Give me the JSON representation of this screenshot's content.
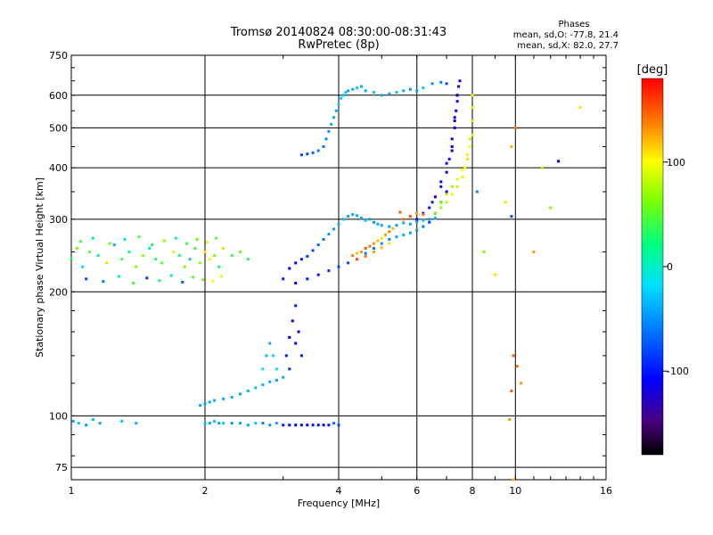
{
  "header": {
    "title_line1": "Tromsø 20140824 08:30:00-08:31:43",
    "title_line2": "RwPretec (8p)"
  },
  "stats": {
    "heading": "Phases",
    "line1": "mean, sd,O: -77.8, 21.4",
    "line2": "mean, sd,X:  82.0, 27.7"
  },
  "colorbar": {
    "unit_label": "[deg]",
    "ticks": [
      {
        "value": 100,
        "label": "100"
      },
      {
        "value": 0,
        "label": "0"
      },
      {
        "value": -100,
        "label": "-100"
      }
    ],
    "range": [
      -180,
      180
    ]
  },
  "chart_data": {
    "type": "scatter",
    "xlabel": "Frequency [MHz]",
    "ylabel": "Stationary phase Virtual Height [km]",
    "xscale": "log",
    "yscale": "log",
    "xlim": [
      1,
      16
    ],
    "ylim": [
      70,
      750
    ],
    "xticks": [
      {
        "value": 1,
        "label": "1"
      },
      {
        "value": 2,
        "label": "2"
      },
      {
        "value": 4,
        "label": "4"
      },
      {
        "value": 6,
        "label": "6"
      },
      {
        "value": 8,
        "label": "8"
      },
      {
        "value": 10,
        "label": "10"
      },
      {
        "value": 16,
        "label": "16"
      }
    ],
    "yticks": [
      {
        "value": 75,
        "label": "75"
      },
      {
        "value": 100,
        "label": "100"
      },
      {
        "value": 200,
        "label": "200"
      },
      {
        "value": 300,
        "label": "300"
      },
      {
        "value": 400,
        "label": "400"
      },
      {
        "value": 500,
        "label": "500"
      },
      {
        "value": 600,
        "label": "600"
      },
      {
        "value": 750,
        "label": "750"
      }
    ],
    "grid": true,
    "color_encodes": "phase [deg]",
    "series": [
      {
        "x": [
          1.0,
          1.03,
          1.06,
          1.1,
          1.15,
          1.2,
          1.25,
          1.3,
          1.35,
          1.4,
          1.45,
          1.5,
          1.55,
          1.6,
          1.7,
          1.75,
          1.8,
          1.85,
          1.9,
          1.95,
          2.0,
          2.05,
          2.1,
          2.15,
          2.2,
          1.05,
          1.12,
          1.22,
          1.32,
          1.42,
          1.52,
          1.62,
          1.72,
          1.82,
          1.92,
          2.02,
          2.12,
          1.08,
          1.18,
          1.28,
          1.38,
          1.48,
          1.58,
          1.68,
          1.78,
          1.88,
          1.98,
          2.08,
          2.18,
          2.3,
          2.4,
          2.5
        ],
        "y": [
          240,
          255,
          230,
          250,
          245,
          235,
          260,
          240,
          250,
          230,
          245,
          255,
          240,
          235,
          250,
          245,
          230,
          240,
          255,
          235,
          250,
          240,
          245,
          230,
          255,
          265,
          270,
          262,
          268,
          272,
          260,
          266,
          270,
          262,
          268,
          264,
          270,
          215,
          212,
          218,
          210,
          216,
          213,
          219,
          211,
          217,
          214,
          212,
          218,
          245,
          250,
          240
        ],
        "phase": [
          30,
          60,
          -20,
          50,
          10,
          80,
          -40,
          40,
          20,
          60,
          70,
          -10,
          30,
          50,
          90,
          20,
          60,
          -30,
          40,
          70,
          110,
          90,
          60,
          30,
          80,
          40,
          20,
          60,
          -20,
          50,
          30,
          70,
          10,
          40,
          60,
          90,
          50,
          -80,
          -60,
          10,
          40,
          -90,
          30,
          20,
          -70,
          50,
          60,
          100,
          90,
          40,
          60,
          30
        ]
      },
      {
        "x": [
          1.01,
          1.04,
          1.08,
          1.12,
          1.16,
          1.3,
          1.4,
          2.0,
          2.05,
          2.1,
          2.15,
          2.2,
          2.3,
          2.4,
          2.5,
          2.6,
          2.7,
          2.8,
          2.9,
          3.0,
          3.1,
          3.2,
          3.3,
          3.4,
          3.5,
          3.6,
          3.7,
          3.8,
          3.9,
          4.0
        ],
        "y": [
          97,
          96,
          95,
          98,
          96,
          97,
          96,
          96,
          96,
          97,
          96,
          96,
          96,
          96,
          95,
          96,
          96,
          95,
          96,
          95,
          95,
          95,
          95,
          95,
          95,
          95,
          95,
          95,
          96,
          95
        ],
        "phase": [
          -40,
          -30,
          -50,
          -30,
          -40,
          -30,
          -40,
          -30,
          -40,
          -30,
          -40,
          -30,
          -50,
          -40,
          -40,
          -30,
          -60,
          -50,
          -40,
          -100,
          -110,
          -110,
          -100,
          -110,
          -100,
          -100,
          -110,
          -100,
          -60,
          -80
        ]
      },
      {
        "x": [
          1.95,
          2.0,
          2.05,
          2.1,
          2.2,
          2.3,
          2.4,
          2.5,
          2.6,
          2.7,
          2.8,
          2.9,
          3.0,
          3.05,
          3.1,
          3.15,
          3.2,
          3.25,
          3.1,
          3.2,
          3.3,
          2.7,
          2.75,
          2.8,
          2.85,
          2.9
        ],
        "y": [
          106,
          107,
          108,
          109,
          110,
          111,
          113,
          115,
          117,
          119,
          121,
          122,
          124,
          140,
          155,
          170,
          185,
          160,
          130,
          150,
          140,
          130,
          140,
          150,
          140,
          130
        ],
        "phase": [
          -40,
          -40,
          -40,
          -40,
          -40,
          -40,
          -40,
          -35,
          -35,
          -35,
          -40,
          -40,
          -40,
          -100,
          -110,
          -110,
          -100,
          -110,
          -90,
          -110,
          -100,
          -20,
          -30,
          -40,
          -20,
          -10
        ]
      },
      {
        "x": [
          3.0,
          3.1,
          3.2,
          3.3,
          3.4,
          3.5,
          3.6,
          3.7,
          3.8,
          3.9,
          4.0,
          4.1,
          4.2,
          4.3,
          4.4,
          4.5,
          4.6,
          4.7,
          4.8,
          4.9,
          5.0,
          5.2,
          5.4,
          5.6,
          5.8,
          6.0,
          6.2,
          6.4,
          6.6
        ],
        "y": [
          215,
          228,
          235,
          240,
          244,
          252,
          260,
          268,
          276,
          284,
          292,
          300,
          305,
          308,
          306,
          302,
          298,
          300,
          295,
          292,
          290,
          288,
          290,
          294,
          292,
          296,
          298,
          300,
          302
        ],
        "phase": [
          -100,
          -110,
          -110,
          -100,
          -90,
          -80,
          -70,
          -60,
          -50,
          -40,
          -40,
          -30,
          -40,
          -40,
          -40,
          -40,
          -30,
          -40,
          -50,
          -40,
          -40,
          -40,
          -50,
          -40,
          -40,
          -40,
          -30,
          -40,
          -40
        ]
      },
      {
        "x": [
          3.2,
          3.4,
          3.6,
          3.8,
          4.0,
          4.2,
          4.4,
          4.6,
          4.8,
          5.0,
          5.2,
          5.4,
          5.6,
          5.8,
          6.0,
          6.2,
          6.4,
          6.6,
          6.8,
          7.0
        ],
        "y": [
          210,
          215,
          220,
          225,
          230,
          235,
          240,
          248,
          255,
          262,
          268,
          272,
          275,
          278,
          282,
          288,
          295,
          310,
          330,
          350
        ],
        "phase": [
          -110,
          -100,
          -100,
          -90,
          -80,
          -80,
          -70,
          -60,
          -60,
          -50,
          -50,
          -40,
          -40,
          -40,
          -50,
          -60,
          -80,
          -100,
          -110,
          -110
        ]
      },
      {
        "x": [
          4.3,
          4.4,
          4.5,
          4.6,
          4.7,
          4.8,
          4.9,
          5.0,
          5.1,
          5.2,
          5.3,
          4.4,
          4.6,
          4.8,
          5.0,
          5.2
        ],
        "y": [
          245,
          248,
          250,
          255,
          258,
          262,
          266,
          270,
          275,
          280,
          285,
          240,
          244,
          250,
          256,
          262
        ],
        "phase": [
          140,
          120,
          130,
          150,
          140,
          130,
          120,
          110,
          130,
          140,
          120,
          150,
          140,
          130,
          120,
          110
        ]
      },
      {
        "x": [
          3.3,
          3.4,
          3.5,
          3.6,
          3.7,
          3.75,
          3.8,
          3.85,
          3.9,
          3.95,
          4.0,
          4.05,
          4.1,
          4.15,
          4.2,
          4.3,
          4.4,
          4.5,
          4.6,
          4.8,
          5.0,
          5.2,
          5.4,
          5.6,
          5.8,
          6.0,
          6.2,
          6.5,
          6.8,
          7.0
        ],
        "y": [
          430,
          432,
          435,
          440,
          450,
          470,
          490,
          510,
          530,
          550,
          570,
          590,
          600,
          610,
          615,
          620,
          625,
          630,
          615,
          610,
          600,
          605,
          610,
          615,
          620,
          615,
          625,
          640,
          645,
          640
        ],
        "phase": [
          -80,
          -80,
          -70,
          -60,
          -60,
          -50,
          -50,
          -40,
          -40,
          -40,
          -30,
          -30,
          -30,
          -30,
          -40,
          -40,
          -30,
          -40,
          -40,
          -30,
          -40,
          -40,
          -30,
          -40,
          -50,
          -40,
          -30,
          -50,
          -60,
          -80
        ]
      },
      {
        "x": [
          6.0,
          6.2,
          6.4,
          6.6,
          6.8,
          7.0,
          7.1,
          7.2,
          7.3,
          7.35,
          7.4,
          7.45,
          7.5,
          6.5,
          6.8,
          7.0,
          7.2,
          7.3,
          7.4,
          7.2,
          7.3,
          7.4
        ],
        "y": [
          300,
          310,
          320,
          340,
          360,
          390,
          420,
          450,
          500,
          550,
          600,
          630,
          650,
          330,
          370,
          410,
          470,
          530,
          600,
          440,
          520,
          580
        ],
        "phase": [
          -100,
          -110,
          -110,
          -120,
          -110,
          -110,
          -120,
          -110,
          -120,
          -110,
          -120,
          -130,
          -120,
          -100,
          -110,
          -110,
          -120,
          -120,
          -130,
          -110,
          -120,
          -110
        ]
      },
      {
        "x": [
          6.6,
          6.8,
          7.0,
          7.2,
          7.4,
          7.6,
          7.7,
          7.8,
          7.9,
          8.0,
          8.0,
          8.0,
          6.8,
          7.0,
          7.2,
          7.4,
          7.6,
          7.8,
          7.9,
          8.0
        ],
        "y": [
          310,
          320,
          330,
          345,
          360,
          380,
          400,
          420,
          450,
          480,
          520,
          560,
          330,
          345,
          360,
          375,
          395,
          430,
          470,
          600
        ],
        "phase": [
          60,
          70,
          80,
          90,
          80,
          90,
          100,
          110,
          100,
          90,
          80,
          90,
          60,
          80,
          70,
          90,
          100,
          90,
          80,
          100
        ]
      },
      {
        "x": [
          5.6,
          5.8,
          6.0,
          6.2,
          5.5
        ],
        "y": [
          300,
          305,
          310,
          308,
          312
        ],
        "phase": [
          140,
          150,
          130,
          140,
          150
        ]
      },
      {
        "x": [
          8.2,
          8.5,
          9.0,
          9.5,
          9.8,
          10.0,
          9.8,
          9.9,
          10.1,
          10.3,
          11.0,
          11.5,
          12.0,
          12.5,
          14.0,
          9.9,
          9.7,
          9.8
        ],
        "y": [
          350,
          250,
          220,
          330,
          450,
          500,
          305,
          140,
          132,
          120,
          250,
          400,
          320,
          415,
          560,
          70,
          98,
          115
        ],
        "phase": [
          -60,
          60,
          110,
          110,
          120,
          140,
          -80,
          150,
          140,
          130,
          130,
          80,
          60,
          -110,
          110,
          120,
          130,
          150
        ]
      }
    ]
  }
}
